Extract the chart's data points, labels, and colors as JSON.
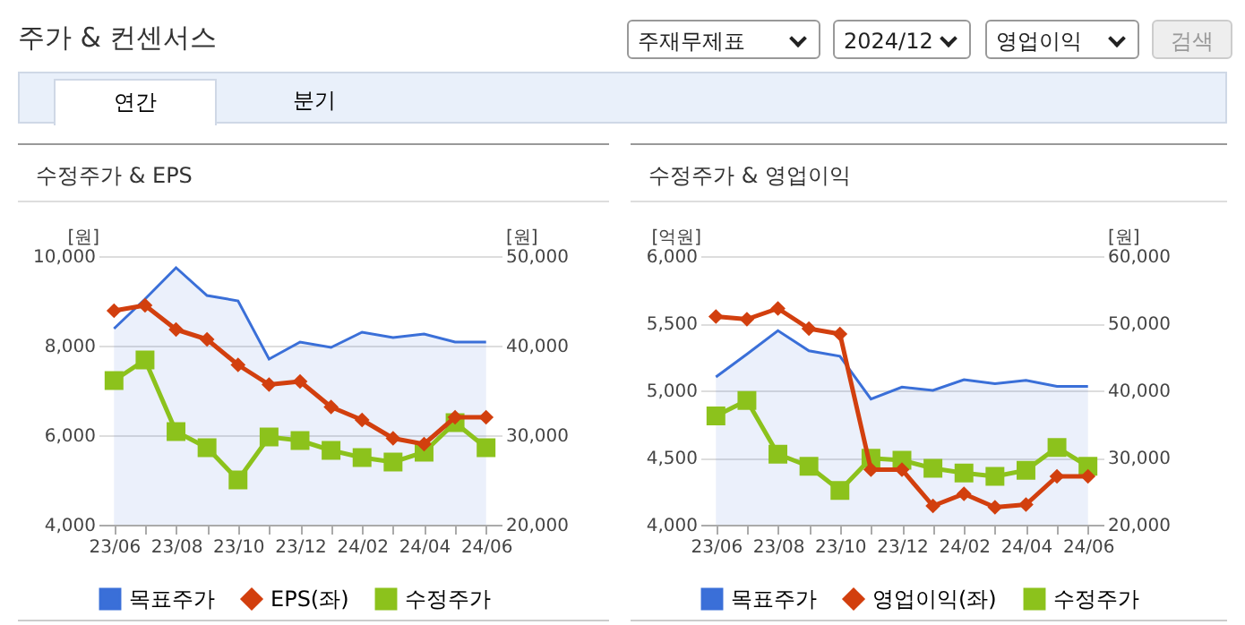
{
  "chart_data": [
    {
      "type": "other",
      "title": "주가 & 컨센서스",
      "annotations": [
        "주재무제표",
        "2024/12",
        "영업이익",
        "검색",
        "연간",
        "분기"
      ]
    },
    {
      "type": "line",
      "title": "수정주가 & EPS",
      "categories": [
        "23/06",
        null,
        "23/08",
        null,
        "23/10",
        null,
        "23/12",
        null,
        "24/02",
        null,
        "24/04",
        null,
        "24/06"
      ],
      "ylabel": "[원]",
      "y2label": "[원]",
      "ylim": [
        4000,
        10000
      ],
      "yticks": [
        {
          "value": 4000,
          "label": "4,000"
        },
        {
          "value": 6000,
          "label": "6,000"
        },
        {
          "value": 8000,
          "label": "8,000"
        },
        {
          "value": 10000,
          "label": "10,000"
        }
      ],
      "y2lim": [
        20000,
        50000
      ],
      "y2ticks": [
        {
          "value": 20000,
          "label": "20,000"
        },
        {
          "value": 30000,
          "label": "30,000"
        },
        {
          "value": 40000,
          "label": "40,000"
        },
        {
          "value": 50000,
          "label": "50,000"
        }
      ],
      "grid": "y",
      "legend": "bottom",
      "series": [
        {
          "name": "목표주가",
          "type": "area",
          "axis": "y2",
          "color": "#3a6fd8",
          "values": [
            41900,
            45200,
            48700,
            45600,
            45000,
            38500,
            40400,
            39800,
            41500,
            40900,
            41300,
            40400,
            40400
          ]
        },
        {
          "name": "EPS(좌)",
          "type": "line",
          "marker": "diamond",
          "color": "#d23f0e",
          "values": [
            8780,
            8900,
            8360,
            8140,
            7570,
            7130,
            7200,
            6630,
            6340,
            5930,
            5800,
            6400,
            6400
          ]
        },
        {
          "name": "수정주가",
          "type": "line",
          "marker": "square",
          "axis": "y2",
          "color": "#8cc21c",
          "values": [
            36100,
            38400,
            30400,
            28600,
            25000,
            29800,
            29400,
            28300,
            27500,
            27000,
            28100,
            31400,
            28600
          ]
        }
      ]
    },
    {
      "type": "line",
      "title": "수정주가 & 영업이익",
      "categories": [
        "23/06",
        null,
        "23/08",
        null,
        "23/10",
        null,
        "23/12",
        null,
        "24/02",
        null,
        "24/04",
        null,
        "24/06"
      ],
      "ylabel": "[억원]",
      "y2label": "[원]",
      "ylim": [
        4000,
        6000
      ],
      "yticks": [
        {
          "value": 4000,
          "label": "4,000"
        },
        {
          "value": 4500,
          "label": "4,500"
        },
        {
          "value": 5000,
          "label": "5,000"
        },
        {
          "value": 5500,
          "label": "5,500"
        },
        {
          "value": 6000,
          "label": "6,000"
        }
      ],
      "y2lim": [
        20000,
        60000
      ],
      "y2ticks": [
        {
          "value": 20000,
          "label": "20,000"
        },
        {
          "value": 30000,
          "label": "30,000"
        },
        {
          "value": 40000,
          "label": "40,000"
        },
        {
          "value": 50000,
          "label": "50,000"
        },
        {
          "value": 60000,
          "label": "60,000"
        }
      ],
      "grid": "y",
      "legend": "bottom",
      "series": [
        {
          "name": "목표주가",
          "type": "area",
          "axis": "y2",
          "color": "#3a6fd8",
          "values": [
            42000,
            45400,
            48900,
            45900,
            45100,
            38700,
            40500,
            40000,
            41600,
            41000,
            41500,
            40600,
            40600
          ]
        },
        {
          "name": "영업이익(좌)",
          "type": "line",
          "marker": "diamond",
          "color": "#d23f0e",
          "values": [
            5550,
            5530,
            5610,
            5460,
            5420,
            4410,
            4410,
            4140,
            4230,
            4130,
            4150,
            4360,
            4360
          ]
        },
        {
          "name": "수정주가",
          "type": "line",
          "marker": "square",
          "axis": "y2",
          "color": "#8cc21c",
          "values": [
            36200,
            38500,
            30500,
            28700,
            25100,
            29900,
            29600,
            28400,
            27700,
            27200,
            28100,
            31500,
            28700
          ]
        }
      ]
    }
  ]
}
